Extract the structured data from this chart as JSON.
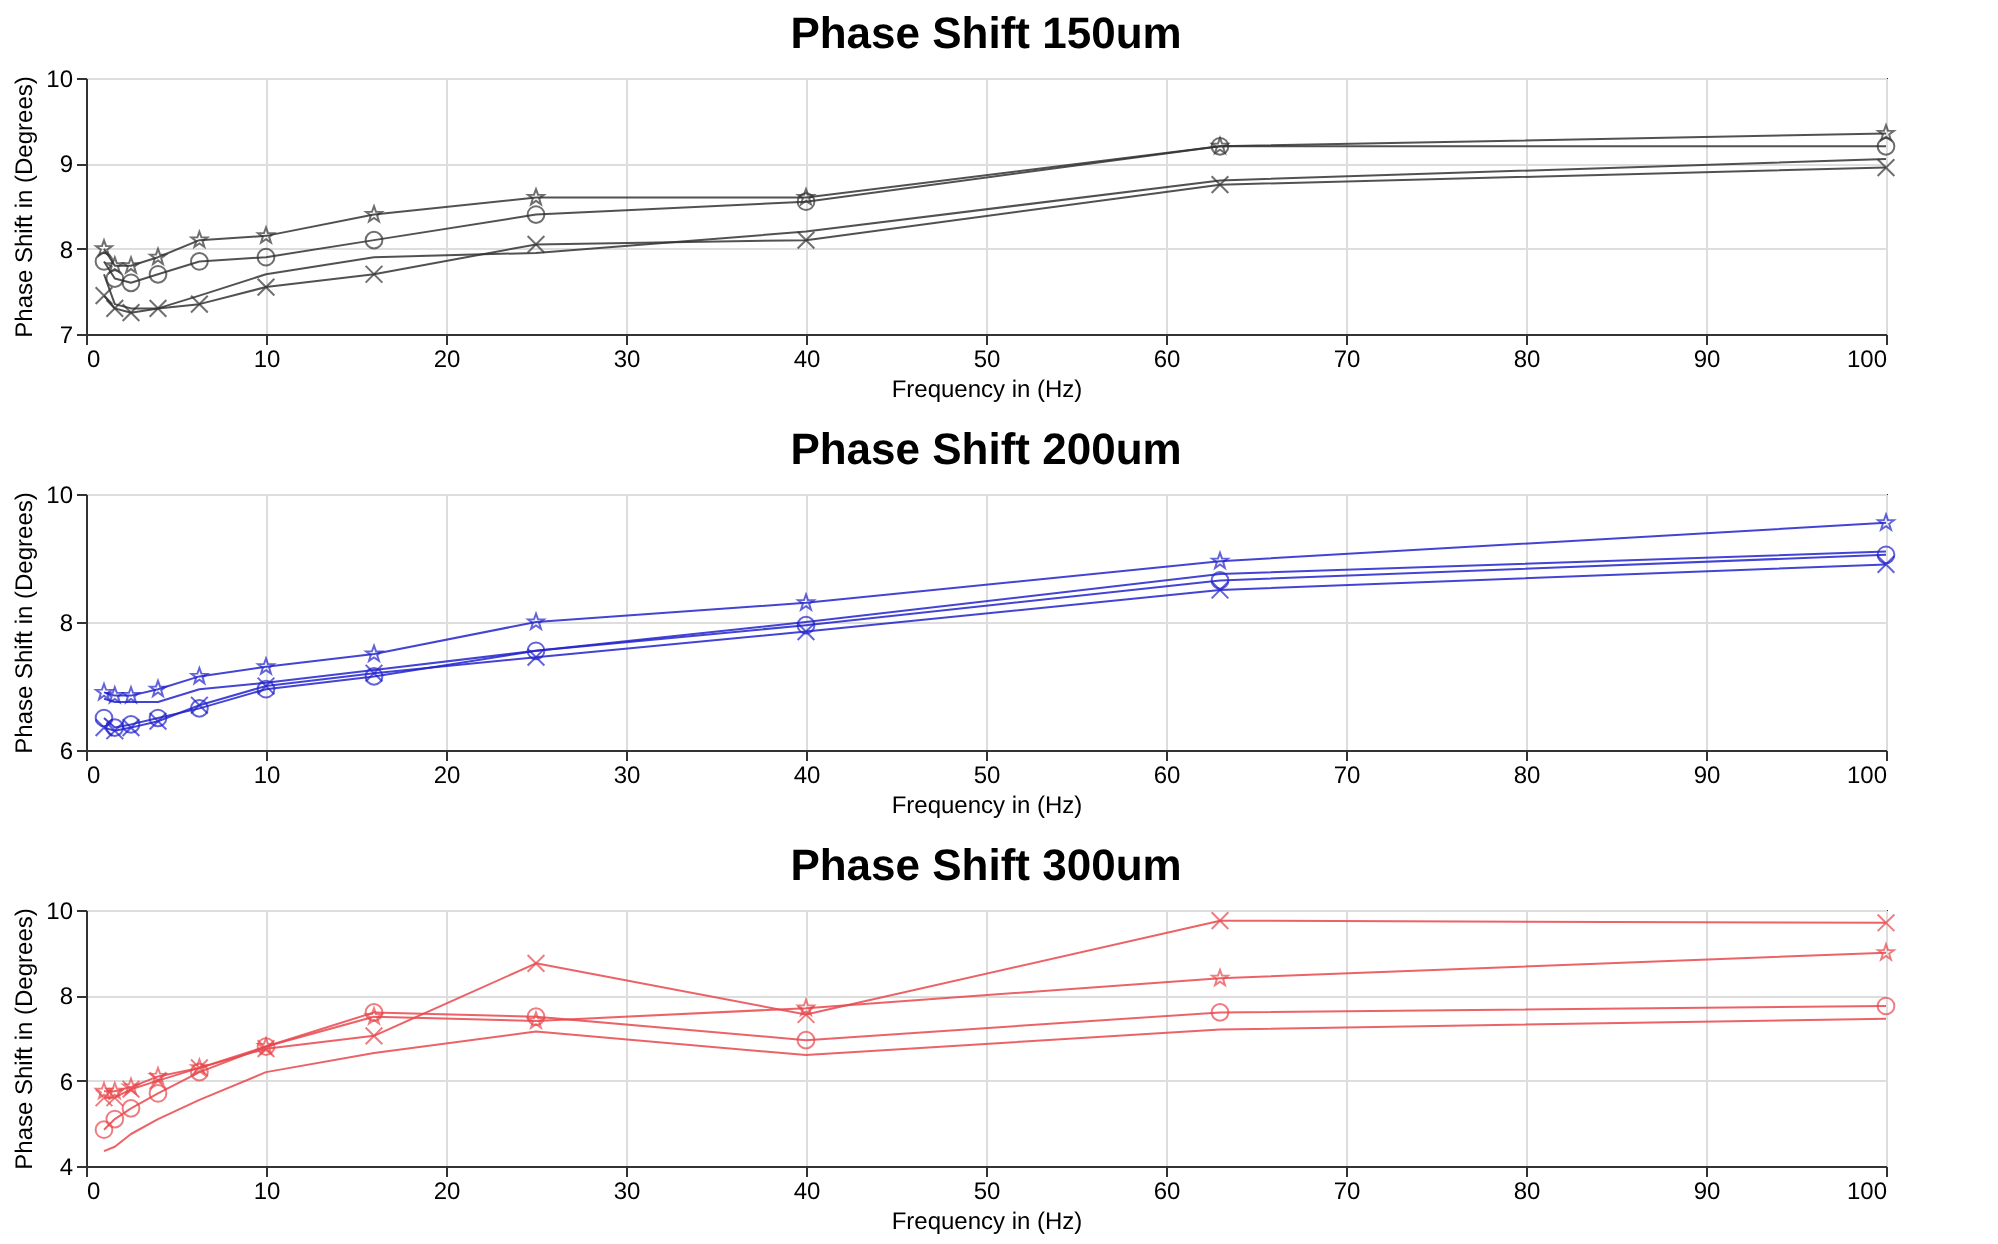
{
  "chart_data": [
    {
      "type": "line",
      "title": "Phase Shift 150um",
      "xlabel": "Frequency in (Hz)",
      "ylabel": "Phase Shift in (Degrees)",
      "x": [
        1,
        1.6,
        2.5,
        4,
        6.3,
        10,
        16,
        25,
        40,
        63,
        100
      ],
      "xlim": [
        0,
        100
      ],
      "xticks": [
        0,
        10,
        20,
        30,
        40,
        50,
        60,
        70,
        80,
        90,
        100
      ],
      "ylim": [
        7,
        10
      ],
      "yticks": [
        7,
        8,
        9,
        10
      ],
      "grid": true,
      "legend": false,
      "series": [
        {
          "color": "#333333",
          "marker": "star",
          "values": [
            8.0,
            7.8,
            7.8,
            7.9,
            8.1,
            8.15,
            8.4,
            8.6,
            8.6,
            9.2,
            9.35
          ]
        },
        {
          "color": "#333333",
          "marker": "circle",
          "values": [
            7.85,
            7.65,
            7.6,
            7.7,
            7.85,
            7.9,
            8.1,
            8.4,
            8.55,
            9.2,
            9.2
          ]
        },
        {
          "color": "#333333",
          "marker": "none",
          "values": [
            7.7,
            7.35,
            7.3,
            7.3,
            7.45,
            7.7,
            7.9,
            7.95,
            8.2,
            8.8,
            9.05
          ]
        },
        {
          "color": "#333333",
          "marker": "cross",
          "values": [
            7.45,
            7.3,
            7.25,
            7.3,
            7.35,
            7.55,
            7.7,
            8.05,
            8.1,
            8.75,
            8.95
          ]
        }
      ]
    },
    {
      "type": "line",
      "title": "Phase Shift 200um",
      "xlabel": "Frequency in (Hz)",
      "ylabel": "Phase Shift in (Degrees)",
      "x": [
        1,
        1.6,
        2.5,
        4,
        6.3,
        10,
        16,
        25,
        40,
        63,
        100
      ],
      "xlim": [
        0,
        100
      ],
      "xticks": [
        0,
        10,
        20,
        30,
        40,
        50,
        60,
        70,
        80,
        90,
        100
      ],
      "ylim": [
        6,
        10
      ],
      "yticks": [
        6,
        8,
        10
      ],
      "grid": true,
      "legend": false,
      "series": [
        {
          "color": "#2222cc",
          "marker": "star",
          "values": [
            6.9,
            6.85,
            6.85,
            6.95,
            7.15,
            7.3,
            7.5,
            8.0,
            8.3,
            8.95,
            9.55
          ]
        },
        {
          "color": "#2222cc",
          "marker": "none",
          "values": [
            6.8,
            6.75,
            6.75,
            6.75,
            6.95,
            7.05,
            7.25,
            7.55,
            8.0,
            8.75,
            9.1
          ]
        },
        {
          "color": "#2222cc",
          "marker": "circle",
          "values": [
            6.5,
            6.35,
            6.4,
            6.5,
            6.65,
            6.95,
            7.15,
            7.55,
            7.95,
            8.65,
            9.05
          ]
        },
        {
          "color": "#2222cc",
          "marker": "cross",
          "values": [
            6.35,
            6.3,
            6.35,
            6.45,
            6.7,
            7.0,
            7.2,
            7.45,
            7.85,
            8.5,
            8.9
          ]
        }
      ]
    },
    {
      "type": "line",
      "title": "Phase Shift 300um",
      "xlabel": "Frequency in (Hz)",
      "ylabel": "Phase Shift in (Degrees)",
      "x": [
        1,
        1.6,
        2.5,
        4,
        6.3,
        10,
        16,
        25,
        40,
        63,
        100
      ],
      "xlim": [
        0,
        100
      ],
      "xticks": [
        0,
        10,
        20,
        30,
        40,
        50,
        60,
        70,
        80,
        90,
        100
      ],
      "ylim": [
        4,
        10
      ],
      "yticks": [
        4,
        6,
        8,
        10
      ],
      "grid": true,
      "legend": false,
      "series": [
        {
          "color": "#e8474c",
          "marker": "cross",
          "values": [
            5.6,
            5.6,
            5.8,
            6.0,
            6.3,
            6.75,
            7.05,
            8.75,
            7.55,
            9.75,
            9.7
          ]
        },
        {
          "color": "#e8474c",
          "marker": "star",
          "values": [
            5.75,
            5.75,
            5.85,
            6.1,
            6.3,
            6.8,
            7.5,
            7.4,
            7.7,
            8.4,
            9.0
          ]
        },
        {
          "color": "#e8474c",
          "marker": "circle",
          "values": [
            4.85,
            5.1,
            5.35,
            5.7,
            6.2,
            6.8,
            7.6,
            7.5,
            6.95,
            7.6,
            7.75
          ]
        },
        {
          "color": "#e8474c",
          "marker": "none",
          "values": [
            4.35,
            4.45,
            4.75,
            5.1,
            5.55,
            6.2,
            6.65,
            7.15,
            6.6,
            7.2,
            7.45
          ]
        }
      ]
    }
  ]
}
